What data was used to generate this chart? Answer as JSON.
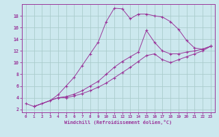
{
  "xlabel": "Windchill (Refroidissement éolien,°C)",
  "background_color": "#cce8ee",
  "grid_color": "#aacccc",
  "line_color": "#993399",
  "spine_color": "#993399",
  "xlim": [
    -0.5,
    23.5
  ],
  "ylim": [
    1.5,
    20.0
  ],
  "xticks": [
    0,
    1,
    2,
    3,
    4,
    5,
    6,
    7,
    8,
    9,
    10,
    11,
    12,
    13,
    14,
    15,
    16,
    17,
    18,
    19,
    20,
    21,
    22,
    23
  ],
  "yticks": [
    2,
    4,
    6,
    8,
    10,
    12,
    14,
    16,
    18
  ],
  "line1_x": [
    0,
    1,
    2,
    3,
    4,
    5,
    6,
    7,
    8,
    9,
    10,
    11,
    12,
    13,
    14,
    15,
    16,
    17,
    18,
    19,
    20,
    21,
    22,
    23
  ],
  "line1_y": [
    3.0,
    2.5,
    3.0,
    3.5,
    4.5,
    6.0,
    7.5,
    9.5,
    11.5,
    13.5,
    17.0,
    19.3,
    19.2,
    17.5,
    18.3,
    18.3,
    18.0,
    17.8,
    17.0,
    15.7,
    13.8,
    12.5,
    12.3,
    12.8
  ],
  "line2_x": [
    1,
    4,
    5,
    6,
    7,
    8,
    9,
    10,
    11,
    12,
    13,
    14,
    15,
    16,
    17,
    18,
    19,
    20,
    21,
    22,
    23
  ],
  "line2_y": [
    2.5,
    4.0,
    4.2,
    4.6,
    5.2,
    6.0,
    6.8,
    8.0,
    9.2,
    10.2,
    11.0,
    11.8,
    15.5,
    13.5,
    12.0,
    11.5,
    11.5,
    11.8,
    12.0,
    12.3,
    12.8
  ],
  "line3_x": [
    1,
    4,
    5,
    6,
    7,
    8,
    9,
    10,
    11,
    12,
    13,
    14,
    15,
    16,
    17,
    18,
    19,
    20,
    21,
    22,
    23
  ],
  "line3_y": [
    2.5,
    4.0,
    4.0,
    4.3,
    4.7,
    5.2,
    5.8,
    6.5,
    7.4,
    8.3,
    9.2,
    10.2,
    11.2,
    11.5,
    10.5,
    10.0,
    10.5,
    11.0,
    11.5,
    12.0,
    12.8
  ]
}
